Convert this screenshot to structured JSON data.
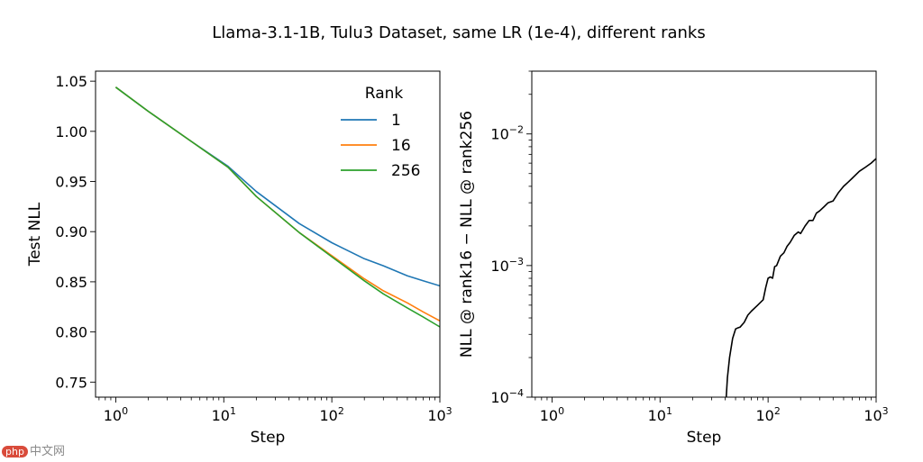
{
  "figure": {
    "suptitle": "Llama-3.1-1B, Tulu3 Dataset, same LR (1e-4), different ranks",
    "watermark": "中文网",
    "watermark_badge": "php"
  },
  "chart_data": [
    {
      "type": "line",
      "id": "left",
      "xscale": "log",
      "yscale": "linear",
      "xlim": [
        0.65,
        1000
      ],
      "ylim": [
        0.735,
        1.06
      ],
      "xlabel": "Step",
      "ylabel": "Test NLL",
      "xticks": [
        {
          "value": 1,
          "label": "10",
          "exp": "0"
        },
        {
          "value": 10,
          "label": "10",
          "exp": "1"
        },
        {
          "value": 100,
          "label": "10",
          "exp": "2"
        },
        {
          "value": 1000,
          "label": "10",
          "exp": "3"
        }
      ],
      "yticks": [
        {
          "value": 0.75,
          "label": "0.75"
        },
        {
          "value": 0.8,
          "label": "0.80"
        },
        {
          "value": 0.85,
          "label": "0.85"
        },
        {
          "value": 0.9,
          "label": "0.90"
        },
        {
          "value": 0.95,
          "label": "0.95"
        },
        {
          "value": 1.0,
          "label": "1.00"
        },
        {
          "value": 1.05,
          "label": "1.05"
        }
      ],
      "legend": {
        "title": "Rank",
        "position": "top-right"
      },
      "series": [
        {
          "name": "1",
          "color": "#1f77b4",
          "x": [
            1,
            2,
            5,
            11,
            20,
            50,
            100,
            200,
            300,
            500,
            700,
            1000
          ],
          "y": [
            1.044,
            1.02,
            0.99,
            0.965,
            0.94,
            0.908,
            0.889,
            0.873,
            0.866,
            0.856,
            0.851,
            0.846
          ]
        },
        {
          "name": "16",
          "color": "#ff7f0e",
          "x": [
            1,
            2,
            5,
            11,
            20,
            50,
            100,
            200,
            300,
            500,
            700,
            1000
          ],
          "y": [
            1.044,
            1.02,
            0.99,
            0.964,
            0.935,
            0.899,
            0.876,
            0.853,
            0.841,
            0.829,
            0.82,
            0.811
          ]
        },
        {
          "name": "256",
          "color": "#2ca02c",
          "x": [
            1,
            2,
            5,
            11,
            20,
            50,
            100,
            200,
            300,
            500,
            700,
            1000
          ],
          "y": [
            1.044,
            1.02,
            0.99,
            0.964,
            0.935,
            0.899,
            0.875,
            0.851,
            0.838,
            0.824,
            0.815,
            0.805
          ]
        }
      ]
    },
    {
      "type": "line",
      "id": "right",
      "xscale": "log",
      "yscale": "log",
      "xlim": [
        0.65,
        1000
      ],
      "ylim": [
        0.0001,
        0.03
      ],
      "xlabel": "Step",
      "ylabel": "NLL @ rank16 − NLL @ rank256",
      "xticks": [
        {
          "value": 1,
          "label": "10",
          "exp": "0"
        },
        {
          "value": 10,
          "label": "10",
          "exp": "1"
        },
        {
          "value": 100,
          "label": "10",
          "exp": "2"
        },
        {
          "value": 1000,
          "label": "10",
          "exp": "3"
        }
      ],
      "yticks": [
        {
          "value": 0.0001,
          "label": "10",
          "exp": "−4"
        },
        {
          "value": 0.001,
          "label": "10",
          "exp": "−3"
        },
        {
          "value": 0.01,
          "label": "10",
          "exp": "−2"
        }
      ],
      "series": [
        {
          "name": "difference",
          "color": "#000000",
          "x": [
            41,
            42,
            44,
            47,
            50,
            52,
            55,
            60,
            65,
            70,
            80,
            90,
            95,
            100,
            105,
            110,
            115,
            120,
            130,
            140,
            150,
            160,
            175,
            190,
            200,
            220,
            240,
            260,
            280,
            300,
            330,
            360,
            400,
            450,
            500,
            550,
            600,
            700,
            800,
            900,
            1000
          ],
          "y": [
            0.0001,
            0.00014,
            0.0002,
            0.00028,
            0.00033,
            0.000335,
            0.00034,
            0.00037,
            0.00042,
            0.00045,
            0.0005,
            0.00055,
            0.00068,
            0.0008,
            0.00082,
            0.0008,
            0.00098,
            0.001,
            0.00118,
            0.00125,
            0.0014,
            0.0015,
            0.0017,
            0.0018,
            0.00175,
            0.002,
            0.0022,
            0.0022,
            0.0025,
            0.0026,
            0.0028,
            0.003,
            0.0031,
            0.0036,
            0.004,
            0.0043,
            0.0046,
            0.0052,
            0.0056,
            0.006,
            0.0065
          ]
        }
      ]
    }
  ]
}
